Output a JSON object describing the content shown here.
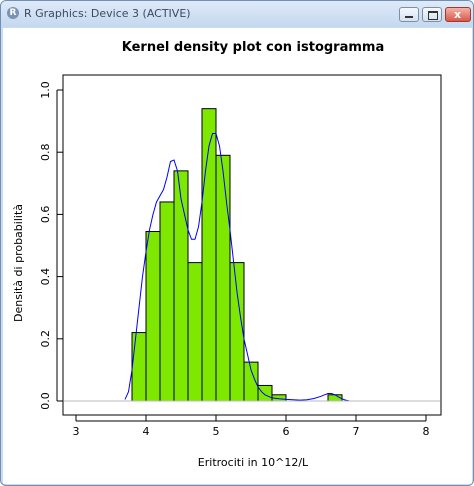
{
  "window": {
    "title": "R Graphics: Device 3 (ACTIVE)",
    "icon_letter": "R",
    "icon_name": "r-app-icon",
    "close_glyph": "x"
  },
  "chart_data": {
    "type": "bar",
    "title": "Kernel density plot con istogramma",
    "xlabel": "Eritrociti in 10^12/L",
    "ylabel": "Densità di probabilità",
    "xlim": [
      3,
      8
    ],
    "ylim": [
      0,
      1.0
    ],
    "x_ticks": [
      "3",
      "4",
      "5",
      "6",
      "7",
      "8"
    ],
    "y_ticks": [
      "0.0",
      "0.2",
      "0.4",
      "0.6",
      "0.8",
      "1.0"
    ],
    "grid": false,
    "bars": {
      "bin_edges": [
        3.8,
        4.0,
        4.2,
        4.4,
        4.6,
        4.8,
        5.0,
        5.2,
        5.4,
        5.6,
        5.8,
        6.0,
        6.2,
        6.4,
        6.6,
        6.8
      ],
      "values": [
        0.22,
        0.545,
        0.64,
        0.74,
        0.445,
        0.94,
        0.79,
        0.445,
        0.125,
        0.05,
        0.02,
        0,
        0,
        0,
        0.02
      ],
      "color": "#7FE800"
    },
    "density": {
      "x": [
        3.7,
        3.75,
        3.8,
        3.85,
        3.9,
        3.95,
        4.0,
        4.05,
        4.1,
        4.15,
        4.2,
        4.25,
        4.3,
        4.35,
        4.4,
        4.45,
        4.5,
        4.55,
        4.6,
        4.65,
        4.7,
        4.75,
        4.8,
        4.85,
        4.9,
        4.95,
        5.0,
        5.05,
        5.1,
        5.15,
        5.2,
        5.25,
        5.3,
        5.35,
        5.4,
        5.45,
        5.5,
        5.55,
        5.6,
        5.65,
        5.7,
        5.8,
        5.9,
        6.0,
        6.1,
        6.2,
        6.3,
        6.4,
        6.5,
        6.55,
        6.6,
        6.65,
        6.7,
        6.75,
        6.8,
        6.85,
        6.9
      ],
      "y": [
        0.005,
        0.03,
        0.1,
        0.2,
        0.3,
        0.4,
        0.48,
        0.55,
        0.6,
        0.64,
        0.66,
        0.68,
        0.72,
        0.77,
        0.775,
        0.74,
        0.65,
        0.6,
        0.55,
        0.52,
        0.52,
        0.56,
        0.64,
        0.74,
        0.82,
        0.86,
        0.86,
        0.82,
        0.74,
        0.64,
        0.55,
        0.45,
        0.35,
        0.27,
        0.2,
        0.15,
        0.1,
        0.07,
        0.045,
        0.03,
        0.02,
        0.01,
        0.007,
        0.005,
        0.004,
        0.003,
        0.004,
        0.008,
        0.015,
        0.02,
        0.024,
        0.024,
        0.02,
        0.013,
        0.007,
        0.003,
        0.001
      ],
      "color": "#0000FF"
    }
  }
}
